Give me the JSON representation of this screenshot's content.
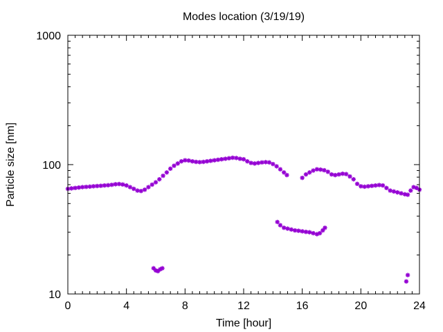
{
  "chart_data": {
    "type": "scatter",
    "title": "Modes location (3/19/19)",
    "xlabel": "Time [hour]",
    "ylabel": "Particle size [nm]",
    "xlim": [
      0,
      24
    ],
    "ylim": [
      10,
      1000
    ],
    "yscale": "log",
    "x_ticks": [
      0,
      4,
      8,
      12,
      16,
      20,
      24
    ],
    "x_tick_labels": [
      "0",
      "4",
      "8",
      "12",
      "16",
      "20",
      "24"
    ],
    "y_ticks": [
      10,
      100,
      1000
    ],
    "y_tick_labels": [
      "10",
      "100",
      "1000"
    ],
    "grid": false,
    "legend": "none",
    "marker_color": "#9400d3",
    "series": [
      {
        "points": [
          [
            0.0,
            65
          ],
          [
            0.25,
            65.5
          ],
          [
            0.5,
            66
          ],
          [
            0.75,
            66.5
          ],
          [
            1.0,
            67
          ],
          [
            1.25,
            67.3
          ],
          [
            1.5,
            67.6
          ],
          [
            1.75,
            68
          ],
          [
            2.0,
            68.3
          ],
          [
            2.25,
            68.6
          ],
          [
            2.5,
            69
          ],
          [
            2.75,
            69.3
          ],
          [
            3.0,
            69.8
          ],
          [
            3.25,
            70.5
          ],
          [
            3.5,
            70.8
          ],
          [
            3.75,
            70.2
          ],
          [
            4.0,
            69
          ],
          [
            4.25,
            67
          ],
          [
            4.5,
            65
          ],
          [
            4.75,
            63
          ],
          [
            5.0,
            62.5
          ],
          [
            5.25,
            64
          ],
          [
            5.5,
            67
          ],
          [
            5.75,
            70
          ],
          [
            6.0,
            73
          ],
          [
            6.25,
            77
          ],
          [
            6.5,
            82
          ],
          [
            6.75,
            87
          ],
          [
            7.0,
            93
          ],
          [
            7.25,
            98
          ],
          [
            7.5,
            102
          ],
          [
            7.75,
            106
          ],
          [
            8.0,
            108
          ],
          [
            8.25,
            107.5
          ],
          [
            8.5,
            106
          ],
          [
            8.75,
            105
          ],
          [
            9.0,
            104.5
          ],
          [
            9.25,
            105
          ],
          [
            9.5,
            106
          ],
          [
            9.75,
            107
          ],
          [
            10.0,
            108
          ],
          [
            10.25,
            109
          ],
          [
            10.5,
            110
          ],
          [
            10.75,
            111
          ],
          [
            11.0,
            112
          ],
          [
            11.25,
            113
          ],
          [
            11.5,
            112.5
          ],
          [
            11.75,
            111
          ],
          [
            12.0,
            110
          ],
          [
            12.25,
            106
          ],
          [
            12.5,
            103
          ],
          [
            12.75,
            102
          ],
          [
            13.0,
            103
          ],
          [
            13.25,
            104
          ],
          [
            13.5,
            104.5
          ],
          [
            13.75,
            104
          ],
          [
            14.0,
            101
          ],
          [
            14.25,
            97
          ],
          [
            14.5,
            92
          ],
          [
            14.75,
            87
          ],
          [
            14.95,
            83
          ],
          [
            16.0,
            79
          ],
          [
            16.25,
            84
          ],
          [
            16.5,
            87
          ],
          [
            16.75,
            90
          ],
          [
            17.0,
            92
          ],
          [
            17.25,
            91.5
          ],
          [
            17.5,
            90.5
          ],
          [
            17.75,
            88
          ],
          [
            18.0,
            84
          ],
          [
            18.25,
            83
          ],
          [
            18.5,
            84
          ],
          [
            18.75,
            85
          ],
          [
            19.0,
            84.5
          ],
          [
            19.25,
            81
          ],
          [
            19.5,
            77
          ],
          [
            19.75,
            71
          ],
          [
            20.0,
            68
          ],
          [
            20.25,
            67.5
          ],
          [
            20.5,
            68
          ],
          [
            20.75,
            68.5
          ],
          [
            21.0,
            69
          ],
          [
            21.25,
            69.5
          ],
          [
            21.5,
            69
          ],
          [
            21.75,
            66
          ],
          [
            22.0,
            63
          ],
          [
            22.25,
            62
          ],
          [
            22.5,
            61
          ],
          [
            22.75,
            60
          ],
          [
            23.0,
            59
          ],
          [
            23.2,
            58.5
          ],
          [
            23.4,
            63
          ],
          [
            23.6,
            67
          ],
          [
            23.8,
            66
          ],
          [
            24.0,
            64
          ]
        ]
      },
      {
        "points": [
          [
            14.3,
            36
          ],
          [
            14.5,
            34
          ],
          [
            14.75,
            32.5
          ],
          [
            15.0,
            32
          ],
          [
            15.25,
            31.5
          ],
          [
            15.5,
            31
          ],
          [
            15.75,
            30.8
          ],
          [
            16.0,
            30.5
          ],
          [
            16.25,
            30.2
          ],
          [
            16.5,
            30
          ],
          [
            16.75,
            29.5
          ],
          [
            17.0,
            29
          ],
          [
            17.2,
            29.5
          ],
          [
            17.4,
            31
          ],
          [
            17.55,
            32.5
          ]
        ]
      },
      {
        "points": [
          [
            5.85,
            15.8
          ],
          [
            6.0,
            15.2
          ],
          [
            6.15,
            15.0
          ],
          [
            6.3,
            15.5
          ],
          [
            6.45,
            15.8
          ],
          [
            23.1,
            12.5
          ],
          [
            23.2,
            14.0
          ]
        ]
      }
    ]
  }
}
